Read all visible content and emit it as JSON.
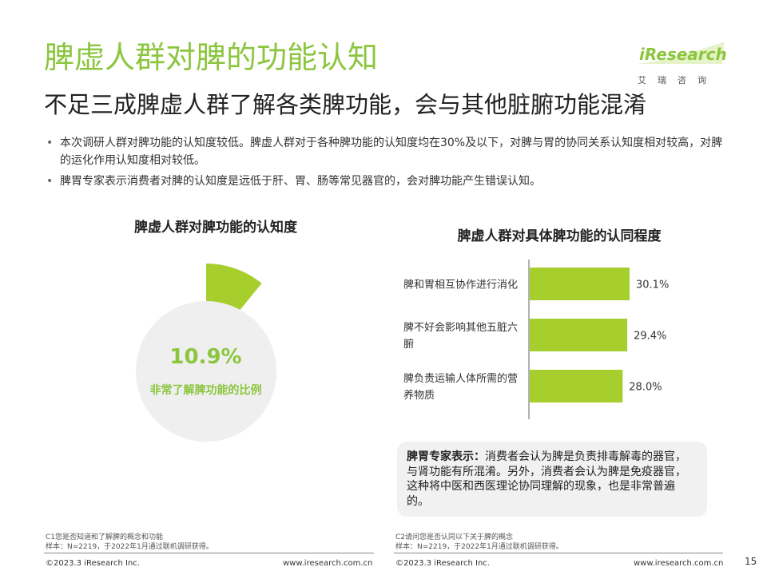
{
  "header": {
    "title": "脾虚人群对脾的功能认知",
    "subtitle": "不足三成脾虚人群了解各类脾功能，会与其他脏腑功能混淆",
    "logo_text": "iResearch",
    "logo_cn": "艾瑞咨询",
    "logo_color": "#8cc63f"
  },
  "bullets": [
    "本次调研人群对脾功能的认知度较低。脾虚人群对于各种脾功能的认知度均在30%及以下，对脾与胃的协同关系认知度相对较高，对脾的运化作用认知度相对较低。",
    "脾胃专家表示消费者对脾的认知度是远低于肝、胃、肠等常见器官的，会对脾功能产生错误认知。"
  ],
  "left_chart": {
    "title": "脾虚人群对脾功能的认知度",
    "value_label": "10.9%",
    "caption": "非常了解脾功能的比例"
  },
  "right_chart": {
    "title": "脾虚人群对具体脾功能的认同程度"
  },
  "chart_data": [
    {
      "type": "pie",
      "title": "脾虚人群对脾功能的认知度",
      "slices": [
        {
          "label": "非常了解脾功能的比例",
          "value": 10.9,
          "color": "#a6ce2c"
        },
        {
          "label": "",
          "value": 89.1,
          "color": "#efefef"
        }
      ]
    },
    {
      "type": "bar",
      "orientation": "horizontal",
      "title": "脾虚人群对具体脾功能的认同程度",
      "categories": [
        [
          "脾和胃相互协作进行消化"
        ],
        [
          "脾不好会影响其他五脏六",
          "腑"
        ],
        [
          "脾负责运输人体所需的营",
          "养物质"
        ]
      ],
      "values": [
        30.1,
        29.4,
        28.0
      ],
      "value_labels": [
        "30.1%",
        "29.4%",
        "28.0%"
      ],
      "xlim": [
        0,
        40
      ],
      "color": "#a6ce2c",
      "grid": false
    }
  ],
  "quote": {
    "lead": "脾胃专家表示：",
    "body": "消费者会认为脾是负责排毒解毒的器官，与肾功能有所混淆。另外，消费者会认为脾是免疫器官，这种将中医和西医理论协同理解的现象，也是非常普遍的。"
  },
  "notes": {
    "left_1": "C1您是否知道和了解脾的概念和功能",
    "left_2": "样本：N=2219，于2022年1月通过联机调研获得。",
    "right_1": "C2请问您是否认同以下关于脾的概念",
    "right_2": "样本：N=2219，于2022年1月通过联机调研获得。"
  },
  "footer": {
    "copyright": "©2023.3 iResearch Inc.",
    "website": "www.iresearch.com.cn",
    "page": "15"
  }
}
